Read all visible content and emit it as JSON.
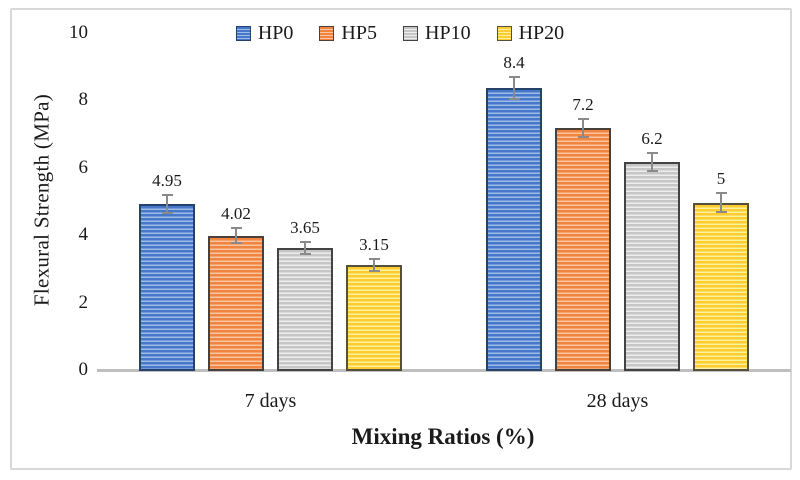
{
  "figure": {
    "background": "#ffffff",
    "frame_color": "#d8d8d8"
  },
  "chart_data": {
    "type": "bar",
    "title": "",
    "categories": [
      "7 days",
      "28 days"
    ],
    "series": [
      {
        "name": "HP0",
        "values": [
          4.95,
          8.4
        ],
        "errors": [
          0.3,
          0.35
        ],
        "fill": "#4677C8",
        "stripe": "#9DBDE8",
        "border": "#24426B"
      },
      {
        "name": "HP5",
        "values": [
          4.02,
          7.2
        ],
        "errors": [
          0.25,
          0.3
        ],
        "fill": "#F08441",
        "stripe": "#FAC49E",
        "border": "#4A4038"
      },
      {
        "name": "HP10",
        "values": [
          3.65,
          6.2
        ],
        "errors": [
          0.22,
          0.3
        ],
        "fill": "#C6C6C6",
        "stripe": "#EDEDED",
        "border": "#434343"
      },
      {
        "name": "HP20",
        "values": [
          3.15,
          5.0
        ],
        "errors": [
          0.2,
          0.3
        ],
        "fill": "#FFCD2E",
        "stripe": "#FFEFA0",
        "border": "#55503A"
      }
    ],
    "data_labels": [
      [
        "4.95",
        "4.02",
        "3.65",
        "3.15"
      ],
      [
        "8.4",
        "7.2",
        "6.2",
        "5"
      ]
    ],
    "xlabel": "Mixing Ratios (%)",
    "ylabel": "Flexural Strength (MPa)",
    "ylim": [
      0,
      10
    ],
    "yticks": [
      0,
      2,
      4,
      6,
      8,
      10
    ],
    "grid": false,
    "legend_position": "top",
    "error_bar_color": "#8a8a8a",
    "axis_line_color": "#bfbfbf",
    "text_color": "#1a1a1a"
  }
}
